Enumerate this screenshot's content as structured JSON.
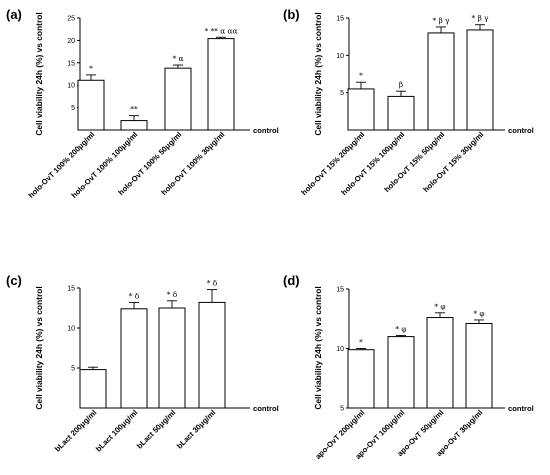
{
  "chart_data": [
    {
      "type": "bar",
      "panel_label": "(a)",
      "ylabel": "Cell viability 24h (%) vs control",
      "baseline_label": "control",
      "categories": [
        "holo-OvT 100% 200μg/ml",
        "holo-OvT 100% 100μg/ml",
        "holo-OvT 100% 50μg/ml",
        "holo-OvT 100% 30μg/ml"
      ],
      "values": [
        11.1,
        2.1,
        13.8,
        20.4
      ],
      "errors": [
        1.2,
        1.1,
        0.7,
        0.3
      ],
      "annotations": [
        "*",
        "**",
        "* α",
        "* ** α αα"
      ],
      "yticks": [
        5,
        10,
        15,
        20,
        25
      ],
      "ylim": [
        0,
        25
      ]
    },
    {
      "type": "bar",
      "panel_label": "(b)",
      "ylabel": "Cell viability 24h (%) vs control",
      "baseline_label": "control",
      "categories": [
        "holo-OvT 15% 200μg/ml",
        "holo-OvT 15% 100μg/ml",
        "holo-OvT 15% 50μg/ml",
        "holo-OvT 15% 30μg/ml"
      ],
      "values": [
        5.5,
        4.5,
        13.0,
        13.4
      ],
      "errors": [
        0.9,
        0.7,
        0.8,
        0.7
      ],
      "annotations": [
        "*",
        "β",
        "* β γ",
        "* β γ"
      ],
      "yticks": [
        5,
        10,
        15
      ],
      "ylim": [
        0,
        15
      ]
    },
    {
      "type": "bar",
      "panel_label": "(c)",
      "ylabel": "Cell viability 24h (%) vs control",
      "baseline_label": "control",
      "categories": [
        "bLact 200μg/ml",
        "bLact 100μg/ml",
        "bLact 50μg/ml",
        "bLact 30μg/ml"
      ],
      "values": [
        4.8,
        12.4,
        12.5,
        13.2
      ],
      "errors": [
        0.3,
        0.8,
        0.9,
        1.6
      ],
      "annotations": [
        "",
        "* δ",
        "* δ",
        "* δ"
      ],
      "yticks": [
        5,
        10,
        15
      ],
      "ylim": [
        0,
        15
      ]
    },
    {
      "type": "bar",
      "panel_label": "(d)",
      "ylabel": "Cell viability 24h (%) vs control",
      "baseline_label": "control",
      "categories": [
        "apo-OvT 200μg/ml",
        "apo-OvT 100μg/ml",
        "apo-OvT 50μg/ml",
        "apo-OvT 30μg/ml"
      ],
      "values": [
        9.9,
        11.0,
        12.6,
        12.1
      ],
      "errors": [
        0.1,
        0.1,
        0.4,
        0.3
      ],
      "annotations": [
        "*",
        "* φ",
        "* φ",
        "* φ"
      ],
      "yticks": [
        5,
        10,
        15
      ],
      "ylim": [
        5,
        15
      ]
    }
  ]
}
